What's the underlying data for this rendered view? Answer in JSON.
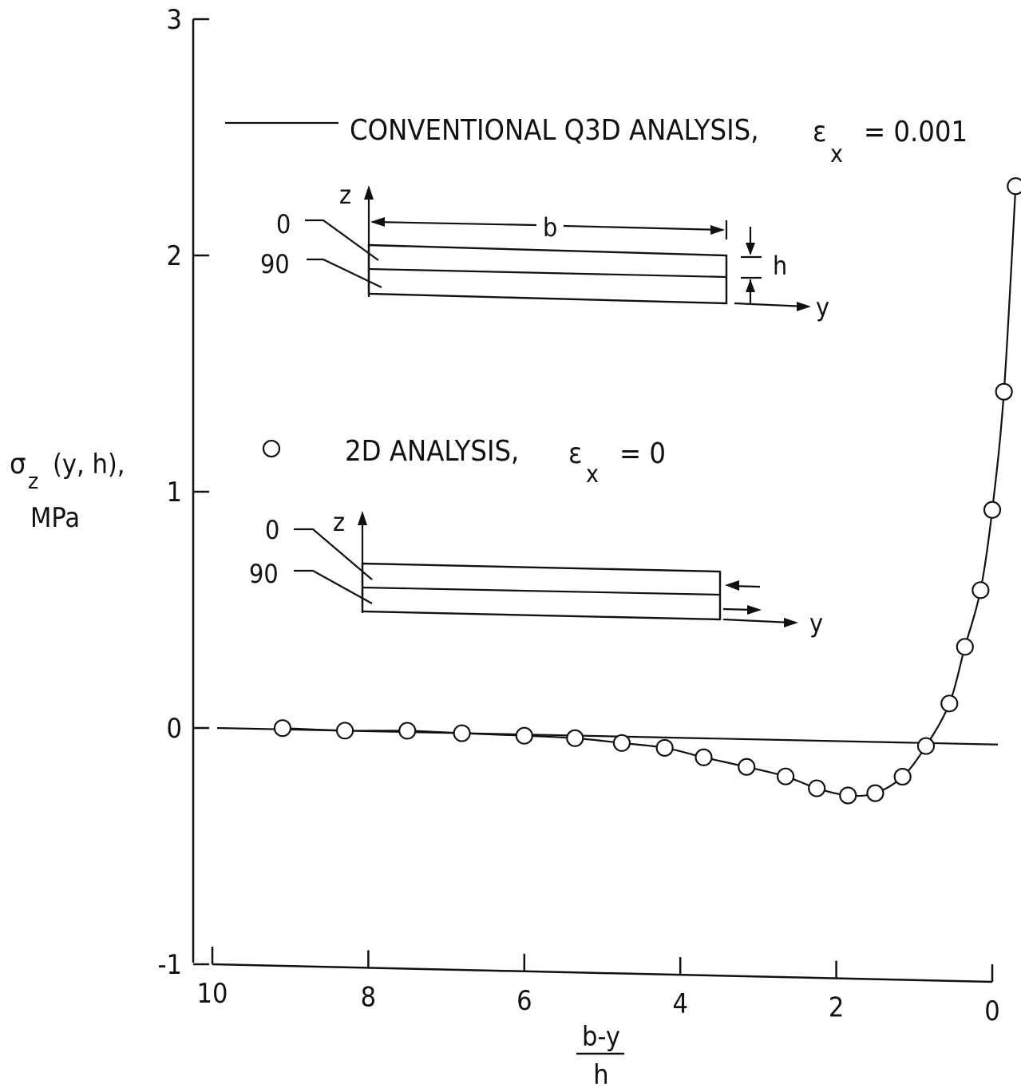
{
  "chart_data": {
    "type": "line",
    "title": "",
    "ylabel": [
      "σ",
      "z",
      "(y, h),",
      "MPa"
    ],
    "xlabel": {
      "numerator": "b-y",
      "denominator": "h"
    },
    "x_reversed": true,
    "xlim": [
      10,
      0
    ],
    "ylim": [
      -1,
      3
    ],
    "xticks": [
      10,
      8,
      6,
      4,
      2,
      0
    ],
    "xtick_labels": [
      "10",
      "8",
      "6",
      "4",
      "2",
      "0"
    ],
    "yticks": [
      3,
      2,
      1,
      0,
      -1
    ],
    "ytick_labels": [
      "3",
      "2",
      "1",
      "0",
      "-1"
    ],
    "series": [
      {
        "name": "CONVENTIONAL Q3D ANALYSIS, εx = 0.001",
        "style": "line",
        "x": [
          10,
          0
        ],
        "y": [
          0.0,
          -0.07
        ]
      },
      {
        "name": "2D ANALYSIS, εx = 0",
        "style": "line+circles",
        "x": [
          9.1,
          8.3,
          7.5,
          6.8,
          6.0,
          5.35,
          4.75,
          4.2,
          3.7,
          3.15,
          2.65,
          2.25,
          1.85,
          1.5,
          1.15,
          0.85,
          0.55,
          0.35,
          0.15,
          0.0,
          -0.15,
          -0.3
        ],
        "y": [
          0.0,
          -0.01,
          -0.01,
          -0.02,
          -0.03,
          -0.04,
          -0.06,
          -0.08,
          -0.12,
          -0.16,
          -0.2,
          -0.25,
          -0.28,
          -0.27,
          -0.2,
          -0.07,
          0.11,
          0.35,
          0.59,
          0.93,
          1.43,
          2.3
        ]
      }
    ],
    "legend": {
      "line_label": "CONVENTIONAL Q3D ANALYSIS,",
      "line_eps": "= 0.001",
      "circle_label": "2D ANALYSIS,",
      "circle_eps": "= 0",
      "eps_symbol": "ε",
      "eps_sub": "x"
    },
    "insets": {
      "top": {
        "z": "z",
        "layer0": "0",
        "layer90": "90",
        "b": "b",
        "h": "h",
        "y": "y"
      },
      "bottom": {
        "z": "z",
        "layer0": "0",
        "layer90": "90",
        "y": "y"
      }
    }
  }
}
